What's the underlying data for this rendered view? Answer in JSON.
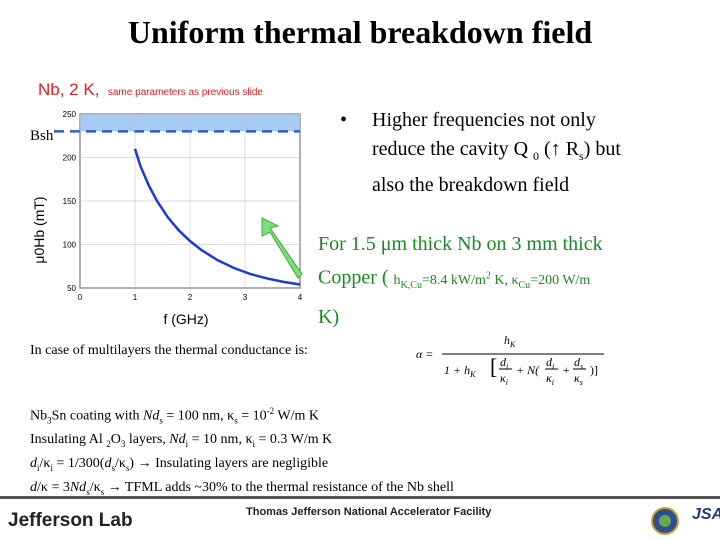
{
  "title": "Uniform thermal breakdown field",
  "subtitle": {
    "main": "Nb, 2 K,",
    "note": "same parameters as previous slide"
  },
  "plot": {
    "bsh_label": "Bsh",
    "ylabel": "μ0Hb (mT)",
    "xlabel": "f (GHz)",
    "yticks": [
      "250",
      "200",
      "150",
      "100",
      "50"
    ],
    "xticks": [
      "0",
      "1",
      "2",
      "3",
      "4"
    ],
    "colors": {
      "curve": "#1a3bd6",
      "band": "#9ec5f0",
      "dashed": "#2a5bd8",
      "arrow": "#7ee07a"
    }
  },
  "chart_data": {
    "type": "line",
    "xlabel": "f (GHz)",
    "ylabel": "μ0Hb (mT)",
    "xlim": [
      0,
      4
    ],
    "ylim": [
      50,
      250
    ],
    "series": [
      {
        "x": [
          1.0,
          1.1,
          1.25,
          1.4,
          1.6,
          1.8,
          2.0,
          2.2,
          2.5,
          2.8,
          3.1,
          3.4,
          3.7,
          4.0
        ],
        "y": [
          210,
          190,
          168,
          150,
          131,
          116,
          104,
          94,
          82,
          73,
          66,
          61,
          57,
          54
        ]
      }
    ],
    "reference_band": {
      "label": "Bsh",
      "y": [
        230,
        250
      ],
      "line": 230
    }
  },
  "bullet": {
    "marker": "•",
    "line1": "Higher frequencies not only",
    "line2a": "reduce the cavity Q",
    "line2b": "0",
    "line2c": " (↑ R",
    "line2d": "s",
    "line2e": ") but",
    "line3": "also the breakdown field"
  },
  "green": {
    "p1": "For 1.5 ",
    "p2": "μm thick Nb on 3 mm thick",
    "p3": "Copper (",
    "p4": "h",
    "p5": "K,Cu",
    "p6": "=8.4 kW/m",
    "p7": "2",
    "p8": " K, κ",
    "p9": "Cu",
    "p10": "=200 W/m",
    "p11": "K)"
  },
  "multilayer": "In case of multilayers the thermal conductance is:",
  "formula": {
    "alpha": "α =",
    "num": "h",
    "num_sub": "K",
    "one_plus": "1 + h",
    "one_sub": "K",
    "brk": "[",
    "di": "d",
    "di_sub": "i",
    "ki": "κ",
    "ki_sub": "i",
    "plus": "+ N(",
    "plus2": "+",
    "ds": "d",
    "ds_sub": "s",
    "ks": "κ",
    "ks_sub": "s",
    "close": ")]"
  },
  "notes": [
    {
      "a": "Nb",
      "b": "3",
      "c": "Sn coating with ",
      "d": "Nd",
      "e": "s",
      "f": " = 100 nm, κ",
      "g": "s",
      "h": " = 10",
      "i": "-2",
      "j": " W/m K"
    },
    {
      "a": "Insulating Al ",
      "b": "2",
      "c": "O",
      "d": "3",
      "e": " layers, ",
      "f": "Nd",
      "g": "i",
      "h": " = 10 nm, κ",
      "i": "i",
      "j": " = 0.3 W/m K"
    },
    {
      "a": "d",
      "b": "i",
      "c": "/κ",
      "d": "i",
      "e": " = 1/300(",
      "f": "d",
      "g": "s",
      "h": "/κ",
      "i": "s",
      "j": ")  →  Insulating layers are negligible"
    },
    {
      "a": "d",
      "b": "/κ = 3",
      "c": "Nd",
      "d": "s",
      "e": "/κ",
      "f": "s",
      "g": "  →  TFML adds ~30% to the thermal resistance of the Nb shell"
    }
  ],
  "footer": {
    "logo": "Jefferson Lab",
    "facility": "Thomas Jefferson National Accelerator Facility",
    "jsa": "JSA"
  }
}
